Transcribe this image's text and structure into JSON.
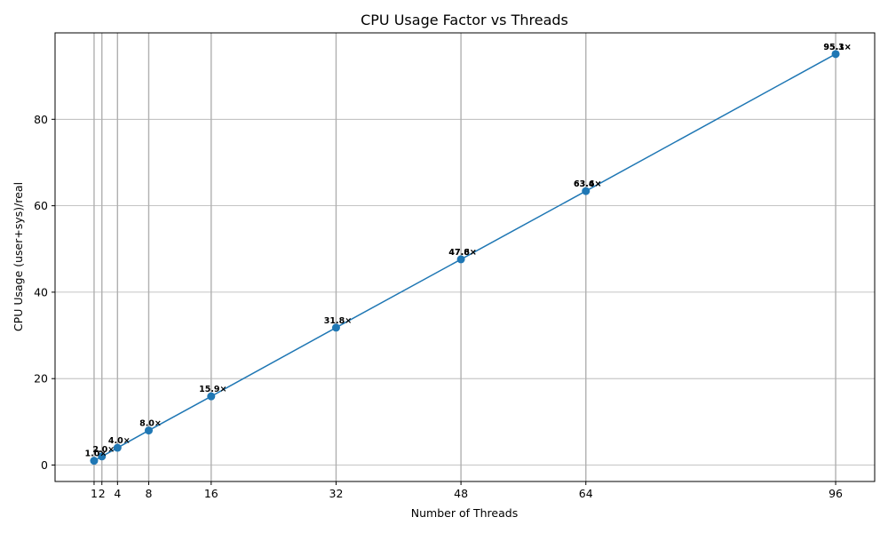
{
  "chart_data": {
    "type": "line",
    "title": "CPU Usage Factor vs Threads",
    "xlabel": "Number of Threads",
    "ylabel": "CPU Usage (user+sys)/real",
    "x": [
      1,
      2,
      4,
      8,
      16,
      32,
      48,
      64,
      96
    ],
    "x_ticks": [
      1,
      2,
      4,
      8,
      16,
      32,
      48,
      64,
      96
    ],
    "y_ticks": [
      0,
      20,
      40,
      60,
      80
    ],
    "xlim": [
      -4.0,
      101.0
    ],
    "ylim": [
      -3.8,
      100.0
    ],
    "series": [
      {
        "values": [
          1.0,
          2.0,
          4.0,
          8.0,
          15.9,
          31.8,
          47.6,
          63.4,
          95.1
        ],
        "color": "#1f77b4"
      }
    ],
    "data_labels": [
      [
        "1.0×"
      ],
      [
        "2.0×"
      ],
      [
        "4.0×"
      ],
      [
        "8.0×"
      ],
      [
        "15.9×"
      ],
      [
        "31.8×"
      ],
      [
        "47.6×",
        "47.8×"
      ],
      [
        "63.4×",
        "63.6×"
      ],
      [
        "95.1×",
        "95.3×"
      ]
    ],
    "grid": true,
    "grid_color": "#b0b0b0"
  }
}
